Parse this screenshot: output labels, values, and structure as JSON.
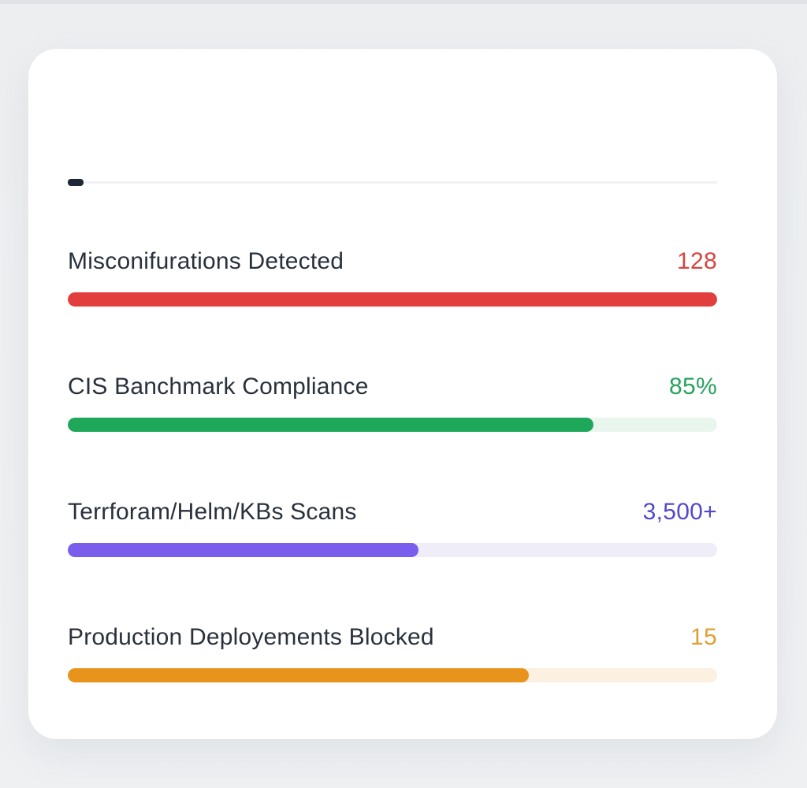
{
  "card": {
    "dash_color": "#1e2836",
    "divider_color": "#f1f2f5"
  },
  "metrics": [
    {
      "label": "Misconifurations Detected",
      "value": "128",
      "value_color": "#d64541",
      "bar_color": "#e33e3e",
      "track_color": "#fbeaea",
      "fill_percent": 100
    },
    {
      "label": "CIS Banchmark Compliance",
      "value": "85%",
      "value_color": "#27a35c",
      "bar_color": "#1fa75a",
      "track_color": "#e9f6ee",
      "fill_percent": 81
    },
    {
      "label": "Terrforam/Helm/KBs Scans",
      "value": "3,500+",
      "value_color": "#5348cb",
      "bar_color": "#7b5ded",
      "track_color": "#efeef8",
      "fill_percent": 54
    },
    {
      "label": "Production Deployements Blocked",
      "value": "15",
      "value_color": "#dfa033",
      "bar_color": "#e8941c",
      "track_color": "#fcf0e1",
      "fill_percent": 71
    }
  ]
}
